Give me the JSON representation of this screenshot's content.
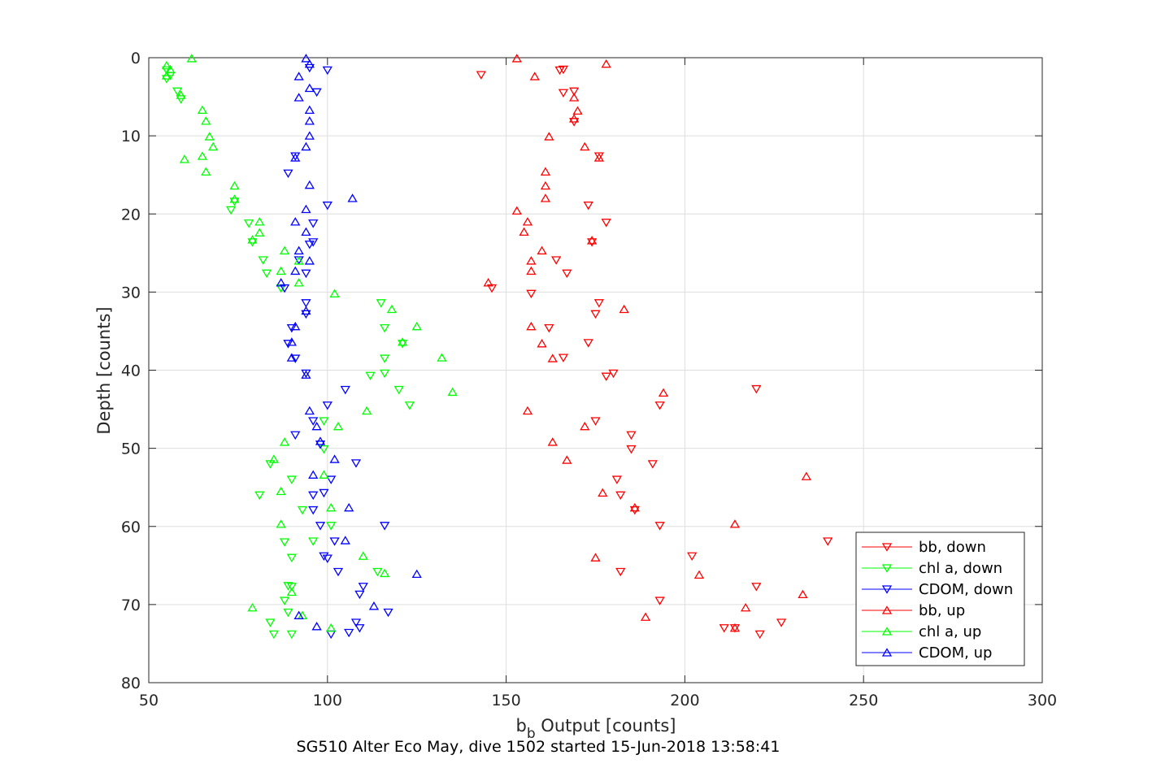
{
  "chart_data": {
    "type": "scatter",
    "title": "",
    "xlabel_main": "b",
    "xlabel_sub": "b",
    "xlabel_rest": " Output [counts]",
    "ylabel": "Depth [counts]",
    "footer": "SG510 Alter Eco May, dive 1502 started 15-Jun-2018 13:58:41",
    "xlim": [
      50,
      300
    ],
    "ylim": [
      0,
      80
    ],
    "y_reversed": true,
    "grid": true,
    "legend_position": "bottom-right",
    "x_ticks": [
      50,
      100,
      150,
      200,
      250,
      300
    ],
    "y_ticks": [
      0,
      10,
      20,
      30,
      40,
      50,
      60,
      70,
      80
    ],
    "series": [
      {
        "name": "bb, down",
        "color": "#ff0000",
        "marker": "triangle-down",
        "points": [
          [
            143,
            2.2
          ],
          [
            165,
            1.6
          ],
          [
            166,
            1.5
          ],
          [
            169,
            4.3
          ],
          [
            166,
            4.5
          ],
          [
            169,
            8.2
          ],
          [
            176,
            12.6
          ],
          [
            173,
            18.9
          ],
          [
            178,
            21.1
          ],
          [
            174,
            23.6
          ],
          [
            164,
            25.9
          ],
          [
            167,
            27.6
          ],
          [
            146,
            29.5
          ],
          [
            157,
            30.2
          ],
          [
            176,
            31.4
          ],
          [
            175,
            32.8
          ],
          [
            162,
            34.6
          ],
          [
            173,
            36.5
          ],
          [
            166,
            38.4
          ],
          [
            180,
            40.4
          ],
          [
            178,
            40.8
          ],
          [
            220,
            42.4
          ],
          [
            193,
            44.5
          ],
          [
            175,
            46.5
          ],
          [
            185,
            48.3
          ],
          [
            185,
            50.1
          ],
          [
            191,
            52.0
          ],
          [
            181,
            54.0
          ],
          [
            182,
            56.0
          ],
          [
            186,
            57.9
          ],
          [
            193,
            59.9
          ],
          [
            240,
            61.9
          ],
          [
            202,
            63.8
          ],
          [
            182,
            65.8
          ],
          [
            220,
            67.7
          ],
          [
            193,
            69.5
          ],
          [
            214,
            73.0
          ],
          [
            211,
            73.0
          ],
          [
            227,
            72.3
          ],
          [
            221,
            73.8
          ]
        ]
      },
      {
        "name": "chl a, down",
        "color": "#00ff00",
        "marker": "triangle-down",
        "points": [
          [
            55,
            1.6
          ],
          [
            56,
            2.3
          ],
          [
            55,
            2.7
          ],
          [
            58,
            4.3
          ],
          [
            59,
            5.3
          ],
          [
            73,
            19.5
          ],
          [
            74,
            18.4
          ],
          [
            78,
            21.2
          ],
          [
            79,
            23.6
          ],
          [
            82,
            25.9
          ],
          [
            83,
            27.6
          ],
          [
            87,
            29.5
          ],
          [
            115,
            31.4
          ],
          [
            116,
            34.6
          ],
          [
            121,
            36.6
          ],
          [
            116,
            38.5
          ],
          [
            112,
            40.7
          ],
          [
            116,
            40.4
          ],
          [
            120,
            42.5
          ],
          [
            123,
            44.5
          ],
          [
            99,
            46.5
          ],
          [
            99,
            50.1
          ],
          [
            84,
            52.0
          ],
          [
            90,
            54.0
          ],
          [
            81,
            56.0
          ],
          [
            93,
            57.9
          ],
          [
            101,
            59.9
          ],
          [
            96,
            61.9
          ],
          [
            88,
            62.0
          ],
          [
            90,
            64.0
          ],
          [
            114,
            65.8
          ],
          [
            90,
            67.7
          ],
          [
            89,
            67.6
          ],
          [
            88,
            69.5
          ],
          [
            84,
            72.3
          ],
          [
            89,
            71.0
          ],
          [
            85,
            73.8
          ],
          [
            90,
            73.8
          ]
        ]
      },
      {
        "name": "CDOM, down",
        "color": "#0000ff",
        "marker": "triangle-down",
        "points": [
          [
            95,
            1.3
          ],
          [
            100,
            1.6
          ],
          [
            97,
            4.4
          ],
          [
            91,
            12.6
          ],
          [
            89,
            14.8
          ],
          [
            100,
            18.9
          ],
          [
            96,
            21.2
          ],
          [
            96,
            23.6
          ],
          [
            95,
            23.9
          ],
          [
            92,
            25.9
          ],
          [
            94,
            27.6
          ],
          [
            88,
            29.5
          ],
          [
            94,
            31.4
          ],
          [
            94,
            32.8
          ],
          [
            90,
            34.6
          ],
          [
            89,
            36.6
          ],
          [
            91,
            38.5
          ],
          [
            94,
            40.4
          ],
          [
            105,
            42.5
          ],
          [
            100,
            44.5
          ],
          [
            96,
            46.5
          ],
          [
            91,
            48.3
          ],
          [
            98,
            49.5
          ],
          [
            108,
            51.9
          ],
          [
            101,
            54.0
          ],
          [
            96,
            56.0
          ],
          [
            99,
            55.7
          ],
          [
            96,
            57.9
          ],
          [
            98,
            59.9
          ],
          [
            116,
            59.9
          ],
          [
            102,
            61.9
          ],
          [
            99,
            63.8
          ],
          [
            100,
            64.1
          ],
          [
            103,
            65.8
          ],
          [
            110,
            67.7
          ],
          [
            109,
            68.7
          ],
          [
            117,
            71.0
          ],
          [
            108,
            72.3
          ],
          [
            109,
            73.0
          ],
          [
            101,
            73.8
          ],
          [
            106,
            73.6
          ]
        ]
      },
      {
        "name": "bb, up",
        "color": "#ff0000",
        "marker": "triangle-up",
        "points": [
          [
            153,
            0.1
          ],
          [
            178,
            0.8
          ],
          [
            158,
            2.4
          ],
          [
            169,
            5.1
          ],
          [
            170,
            6.8
          ],
          [
            169,
            7.8
          ],
          [
            162,
            10.1
          ],
          [
            172,
            11.4
          ],
          [
            176,
            12.8
          ],
          [
            161,
            14.6
          ],
          [
            161,
            16.4
          ],
          [
            161,
            18.0
          ],
          [
            153,
            19.6
          ],
          [
            156,
            21.0
          ],
          [
            155,
            22.3
          ],
          [
            174,
            23.4
          ],
          [
            160,
            24.7
          ],
          [
            157,
            26.0
          ],
          [
            157,
            27.3
          ],
          [
            145,
            28.8
          ],
          [
            183,
            32.2
          ],
          [
            157,
            34.4
          ],
          [
            160,
            36.6
          ],
          [
            163,
            38.5
          ],
          [
            194,
            42.9
          ],
          [
            156,
            45.2
          ],
          [
            172,
            47.2
          ],
          [
            163,
            49.2
          ],
          [
            167,
            51.5
          ],
          [
            234,
            53.6
          ],
          [
            177,
            55.7
          ],
          [
            186,
            57.6
          ],
          [
            214,
            59.7
          ],
          [
            175,
            64.0
          ],
          [
            204,
            66.2
          ],
          [
            233,
            68.7
          ],
          [
            217,
            70.4
          ],
          [
            189,
            71.6
          ],
          [
            214,
            73.0
          ]
        ]
      },
      {
        "name": "chl a, up",
        "color": "#00ff00",
        "marker": "triangle-up",
        "points": [
          [
            62,
            0.1
          ],
          [
            55,
            1.0
          ],
          [
            56,
            1.5
          ],
          [
            55,
            2.3
          ],
          [
            59,
            4.8
          ],
          [
            65,
            6.7
          ],
          [
            66,
            8.1
          ],
          [
            67,
            10.1
          ],
          [
            68,
            11.4
          ],
          [
            60,
            13.0
          ],
          [
            65,
            12.6
          ],
          [
            66,
            14.6
          ],
          [
            74,
            16.4
          ],
          [
            74,
            18.1
          ],
          [
            81,
            21.0
          ],
          [
            81,
            22.4
          ],
          [
            79,
            23.3
          ],
          [
            88,
            24.7
          ],
          [
            92,
            26.0
          ],
          [
            87,
            27.3
          ],
          [
            92,
            28.8
          ],
          [
            102,
            30.2
          ],
          [
            118,
            32.2
          ],
          [
            125,
            34.4
          ],
          [
            121,
            36.4
          ],
          [
            132,
            38.4
          ],
          [
            135,
            42.8
          ],
          [
            111,
            45.2
          ],
          [
            103,
            47.2
          ],
          [
            88,
            49.2
          ],
          [
            99,
            53.4
          ],
          [
            87,
            55.5
          ],
          [
            101,
            57.6
          ],
          [
            87,
            59.7
          ],
          [
            110,
            63.8
          ],
          [
            116,
            66.0
          ],
          [
            79,
            70.4
          ],
          [
            90,
            68.4
          ],
          [
            93,
            71.4
          ],
          [
            101,
            73.0
          ],
          [
            85,
            51.4
          ]
        ]
      },
      {
        "name": "CDOM, up",
        "color": "#0000ff",
        "marker": "triangle-up",
        "points": [
          [
            94,
            0.1
          ],
          [
            95,
            0.8
          ],
          [
            92,
            2.4
          ],
          [
            95,
            3.9
          ],
          [
            92,
            5.1
          ],
          [
            95,
            6.7
          ],
          [
            95,
            8.1
          ],
          [
            95,
            10.0
          ],
          [
            94,
            11.4
          ],
          [
            91,
            12.8
          ],
          [
            95,
            16.3
          ],
          [
            107,
            18.0
          ],
          [
            94,
            19.4
          ],
          [
            91,
            21.0
          ],
          [
            94,
            22.3
          ],
          [
            92,
            24.7
          ],
          [
            95,
            26.0
          ],
          [
            91,
            27.3
          ],
          [
            87,
            28.8
          ],
          [
            94,
            32.4
          ],
          [
            91,
            34.4
          ],
          [
            90,
            36.4
          ],
          [
            90,
            38.4
          ],
          [
            94,
            40.6
          ],
          [
            95,
            45.2
          ],
          [
            97,
            47.2
          ],
          [
            98,
            49.1
          ],
          [
            102,
            51.4
          ],
          [
            96,
            53.4
          ],
          [
            106,
            57.6
          ],
          [
            105,
            61.8
          ],
          [
            125,
            66.1
          ],
          [
            113,
            70.2
          ],
          [
            92,
            71.4
          ],
          [
            97,
            72.8
          ]
        ]
      }
    ]
  }
}
